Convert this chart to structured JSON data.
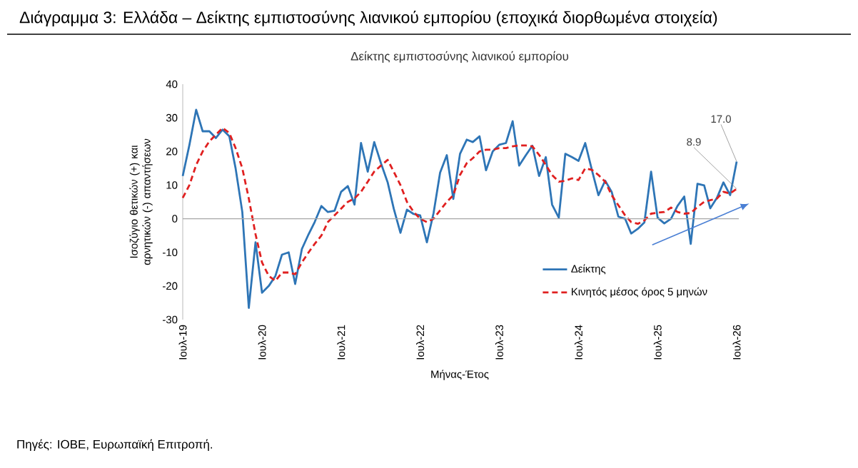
{
  "chart_data": {
    "type": "line",
    "title": "Διάγραμμα 3: Ελλάδα – Δείκτης εμπιστοσύνης λιανικού εμπορίου (εποχικά διορθωμένα στοιχεία)",
    "subtitle": "Δείκτης εμπιστοσύνης λιανικού εμπορίου",
    "xlabel": "Μήνας-Έτος",
    "ylabel": "Ισοζύγιο θετικών (+) και αρνητικών (-) απαντήσεων",
    "x": [
      "2019-07",
      "2019-08",
      "2019-09",
      "2019-10",
      "2019-11",
      "2019-12",
      "2020-01",
      "2020-02",
      "2020-03",
      "2020-04",
      "2020-05",
      "2020-06",
      "2020-07",
      "2020-08",
      "2020-09",
      "2020-10",
      "2020-11",
      "2020-12",
      "2021-01",
      "2021-02",
      "2021-03",
      "2021-04",
      "2021-05",
      "2021-06",
      "2021-07",
      "2021-08",
      "2021-09",
      "2021-10",
      "2021-11",
      "2021-12",
      "2022-01",
      "2022-02",
      "2022-03",
      "2022-04",
      "2022-05",
      "2022-06",
      "2022-07",
      "2022-08",
      "2022-09",
      "2022-10",
      "2022-11",
      "2022-12",
      "2023-01",
      "2023-02",
      "2023-03",
      "2023-04",
      "2023-05",
      "2023-06",
      "2023-07",
      "2023-08",
      "2023-09",
      "2023-10",
      "2023-11",
      "2023-12",
      "2024-01",
      "2024-02",
      "2024-03",
      "2024-04",
      "2024-05",
      "2024-06",
      "2024-07",
      "2024-08",
      "2024-09",
      "2024-10",
      "2024-11",
      "2024-12",
      "2025-01",
      "2025-02",
      "2025-03",
      "2025-04",
      "2025-05",
      "2025-06",
      "2025-07",
      "2025-08",
      "2025-09",
      "2025-10",
      "2025-11",
      "2025-12",
      "2026-01",
      "2026-02",
      "2026-03",
      "2026-04",
      "2026-05",
      "2026-06",
      "2026-07"
    ],
    "series": [
      {
        "name": "Δείκτης",
        "color": "#2e75b6",
        "line_style": "solid",
        "values": [
          12.7,
          22,
          32.4,
          26,
          26,
          24,
          26.5,
          24.5,
          15,
          2,
          -26.5,
          -7,
          -22,
          -20,
          -17,
          -10.7,
          -10,
          -19.4,
          -9,
          -4.6,
          -1,
          3.8,
          2,
          2.4,
          8,
          9.7,
          4.2,
          22.5,
          14,
          22.8,
          16.5,
          10.8,
          3,
          -4.2,
          2.7,
          1.4,
          1,
          -7,
          1.7,
          13.7,
          18.9,
          5.9,
          19.3,
          23.5,
          22.8,
          24.5,
          14.4,
          20,
          22,
          22.5,
          29,
          15.8,
          18.9,
          21.7,
          12.7,
          18.3,
          4.2,
          0.3,
          19.3,
          18.3,
          17.2,
          22.5,
          14.4,
          7,
          11.3,
          8,
          0.6,
          0,
          -4.4,
          -3,
          -1.1,
          14,
          0.3,
          -1.4,
          0,
          3.8,
          6.6,
          -7.5,
          10.4,
          9.9,
          3.1,
          6.2,
          10.8,
          7,
          17.0
        ]
      },
      {
        "name": "Κινητός μέσος όρος 5 μηνών",
        "color": "#e02020",
        "line_style": "dashed",
        "values": [
          6.2,
          10,
          16,
          20,
          23,
          25,
          27,
          25.5,
          21,
          15,
          6,
          -4.6,
          -13,
          -17,
          -18.5,
          -16,
          -16,
          -16.5,
          -13,
          -10,
          -7.5,
          -5,
          -1,
          1,
          3,
          5,
          6,
          8,
          11,
          14,
          15.8,
          17.5,
          14,
          10,
          5,
          2,
          0,
          -1,
          0,
          2.5,
          5,
          7,
          13,
          16.5,
          18,
          20,
          20.5,
          20.5,
          21,
          21,
          21.5,
          21.8,
          21.8,
          21.5,
          19,
          16,
          13,
          11,
          11.3,
          12,
          11.5,
          15,
          14.5,
          13,
          11,
          7,
          4,
          1,
          -1,
          -1.5,
          -0.5,
          1.5,
          1.8,
          2,
          3.3,
          2,
          1.5,
          1.7,
          3.5,
          5,
          5.5,
          6,
          8,
          7.5,
          8.9
        ]
      }
    ],
    "xlim": [
      "2019-07",
      "2026-07"
    ],
    "xticks": [
      {
        "value": "2019-07",
        "label": "Ιουλ-19"
      },
      {
        "value": "2020-07",
        "label": "Ιουλ-20"
      },
      {
        "value": "2021-07",
        "label": "Ιουλ-21"
      },
      {
        "value": "2022-07",
        "label": "Ιουλ-22"
      },
      {
        "value": "2023-07",
        "label": "Ιουλ-23"
      },
      {
        "value": "2024-07",
        "label": "Ιουλ-24"
      },
      {
        "value": "2025-07",
        "label": "Ιουλ-25"
      },
      {
        "value": "2026-07",
        "label": "Ιουλ-26"
      }
    ],
    "ylim": [
      -30,
      40
    ],
    "yticks": [
      -30,
      -20,
      -10,
      0,
      10,
      20,
      30,
      40
    ],
    "ref_lines": [
      {
        "axis": "y",
        "value": 0,
        "color": "#a6a6a6"
      }
    ],
    "legend": "bottom right",
    "grid": false,
    "annotations": [
      "Πηγές: ΙΟΒΕ, Ευρωπαϊκή Επιτροπή.",
      {
        "text": "17.0",
        "x": "2026-07",
        "y": 17.0
      },
      {
        "text": "8.9",
        "x": "2026-07",
        "y": 8.9
      }
    ]
  }
}
